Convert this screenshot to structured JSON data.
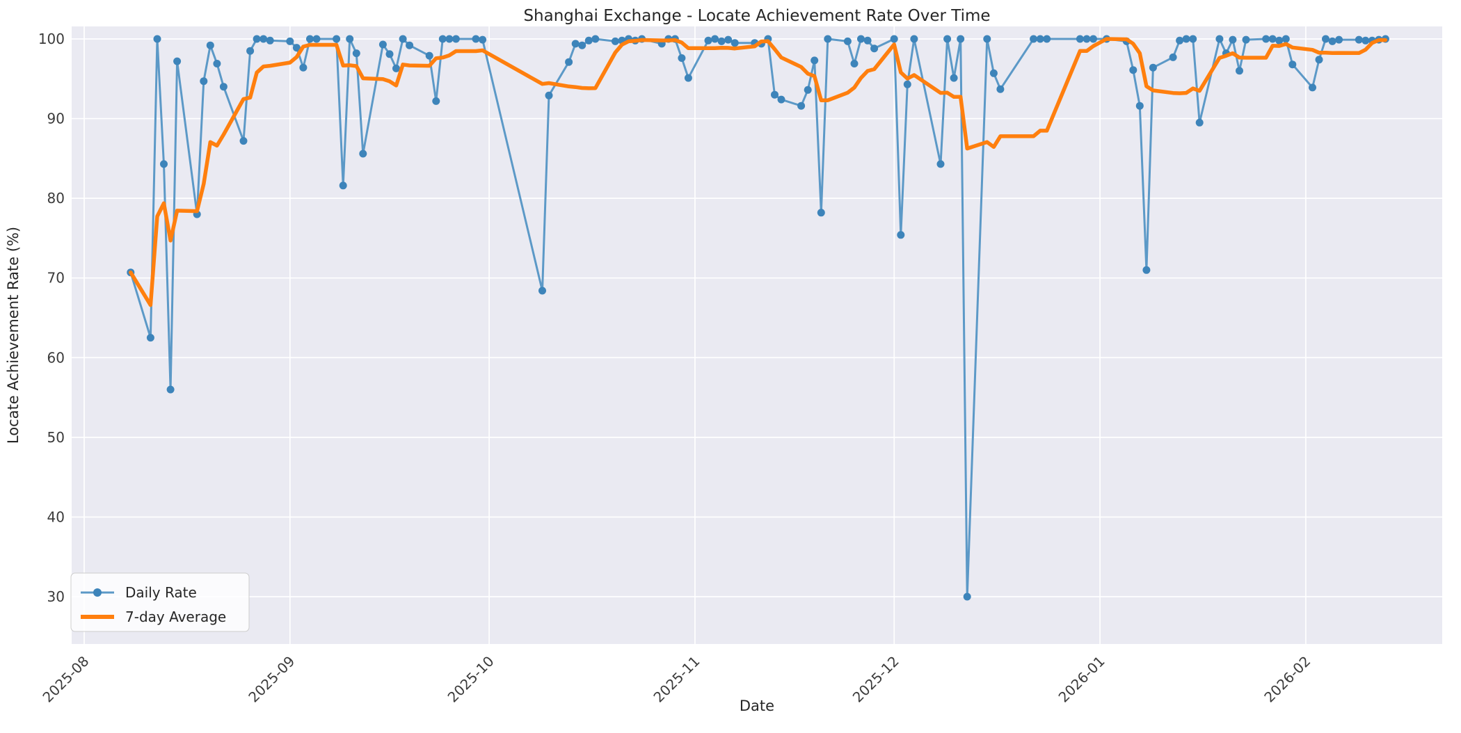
{
  "figure": {
    "title": "Shanghai Exchange - Locate Achievement Rate Over Time",
    "xlabel": "Date",
    "ylabel": "Locate Achievement Rate (%)"
  },
  "legend": {
    "daily_label": "Daily Rate",
    "avg_label": "7-day Average"
  },
  "colors": {
    "daily_line": "#5c99c7",
    "daily_marker": "#3d84ba",
    "avg_line": "#ff7f0e",
    "plot_bg": "#eaeaf2",
    "grid": "#ffffff",
    "text": "#262626",
    "tick_text": "#3b3b3b",
    "legend_border": "#cccccc",
    "legend_bg": "#ffffff"
  },
  "chart_data": {
    "type": "line",
    "title": "Shanghai Exchange - Locate Achievement Rate Over Time",
    "xlabel": "Date",
    "ylabel": "Locate Achievement Rate (%)",
    "grid": true,
    "legend_position": "lower left",
    "y_ticks": [
      30,
      40,
      50,
      60,
      70,
      80,
      90,
      100
    ],
    "x_tick_labels": [
      "2025-08",
      "2025-09",
      "2025-10",
      "2025-11",
      "2025-12",
      "2026-01",
      "2026-02"
    ],
    "ylim": [
      24.8,
      101.6
    ],
    "series": [
      {
        "name": "Daily Rate",
        "style": "line+marker",
        "dates": [
          "2025-08-08",
          "2025-08-11",
          "2025-08-12",
          "2025-08-13",
          "2025-08-14",
          "2025-08-15",
          "2025-08-18",
          "2025-08-19",
          "2025-08-20",
          "2025-08-21",
          "2025-08-22",
          "2025-08-25",
          "2025-08-26",
          "2025-08-27",
          "2025-08-28",
          "2025-08-29",
          "2025-09-01",
          "2025-09-02",
          "2025-09-03",
          "2025-09-04",
          "2025-09-05",
          "2025-09-08",
          "2025-09-09",
          "2025-09-10",
          "2025-09-11",
          "2025-09-12",
          "2025-09-15",
          "2025-09-16",
          "2025-09-17",
          "2025-09-18",
          "2025-09-19",
          "2025-09-22",
          "2025-09-23",
          "2025-09-24",
          "2025-09-25",
          "2025-09-26",
          "2025-09-29",
          "2025-09-30",
          "2025-10-09",
          "2025-10-10",
          "2025-10-13",
          "2025-10-14",
          "2025-10-15",
          "2025-10-16",
          "2025-10-17",
          "2025-10-20",
          "2025-10-21",
          "2025-10-22",
          "2025-10-23",
          "2025-10-24",
          "2025-10-27",
          "2025-10-28",
          "2025-10-29",
          "2025-10-30",
          "2025-10-31",
          "2025-11-03",
          "2025-11-04",
          "2025-11-05",
          "2025-11-06",
          "2025-11-07",
          "2025-11-10",
          "2025-11-11",
          "2025-11-12",
          "2025-11-13",
          "2025-11-14",
          "2025-11-17",
          "2025-11-18",
          "2025-11-19",
          "2025-11-20",
          "2025-11-21",
          "2025-11-24",
          "2025-11-25",
          "2025-11-26",
          "2025-11-27",
          "2025-11-28",
          "2025-12-01",
          "2025-12-02",
          "2025-12-03",
          "2025-12-04",
          "2025-12-08",
          "2025-12-09",
          "2025-12-10",
          "2025-12-11",
          "2025-12-12",
          "2025-12-15",
          "2025-12-16",
          "2025-12-17",
          "2025-12-22",
          "2025-12-23",
          "2025-12-24",
          "2025-12-29",
          "2025-12-30",
          "2025-12-31",
          "2026-01-02",
          "2026-01-05",
          "2026-01-06",
          "2026-01-07",
          "2026-01-08",
          "2026-01-09",
          "2026-01-12",
          "2026-01-13",
          "2026-01-14",
          "2026-01-15",
          "2026-01-16",
          "2026-01-19",
          "2026-01-20",
          "2026-01-21",
          "2026-01-22",
          "2026-01-23",
          "2026-01-26",
          "2026-01-27",
          "2026-01-28",
          "2026-01-29",
          "2026-01-30",
          "2026-02-02",
          "2026-02-03",
          "2026-02-04",
          "2026-02-05",
          "2026-02-06",
          "2026-02-09",
          "2026-02-10",
          "2026-02-11",
          "2026-02-12",
          "2026-02-13"
        ],
        "values": [
          70.7,
          62.5,
          100,
          84.3,
          56.0,
          97.2,
          78.0,
          94.7,
          99.2,
          96.9,
          94.0,
          87.2,
          98.5,
          100,
          100,
          99.8,
          99.7,
          98.9,
          96.4,
          100,
          100,
          100,
          81.6,
          100,
          98.2,
          85.6,
          99.3,
          98.1,
          96.3,
          100,
          99.2,
          97.9,
          92.2,
          100,
          100,
          100,
          100,
          99.9,
          68.4,
          92.9,
          97.1,
          99.4,
          99.2,
          99.8,
          100,
          99.7,
          99.8,
          100,
          99.8,
          100,
          99.4,
          100,
          100,
          97.6,
          95.1,
          99.8,
          100,
          99.7,
          99.9,
          99.5,
          99.5,
          99.4,
          100,
          93.0,
          92.4,
          91.6,
          93.6,
          97.3,
          78.2,
          100,
          99.7,
          96.9,
          100,
          99.8,
          98.8,
          100,
          75.4,
          94.3,
          100,
          84.3,
          100,
          95.1,
          100,
          30.0,
          100,
          95.7,
          93.7,
          100,
          100,
          100,
          100,
          100,
          100,
          100,
          99.7,
          96.1,
          91.6,
          71.0,
          96.4,
          97.7,
          99.8,
          100,
          100,
          89.5,
          100,
          98.2,
          99.9,
          96.0,
          99.9,
          100,
          100,
          99.8,
          100,
          96.8,
          93.9,
          97.4,
          100,
          99.7,
          99.9,
          99.9,
          99.8,
          99.8,
          99.9,
          100
        ]
      },
      {
        "name": "7-day Average",
        "style": "line",
        "derived_from": "Daily Rate",
        "rolling_window": 7
      }
    ]
  }
}
